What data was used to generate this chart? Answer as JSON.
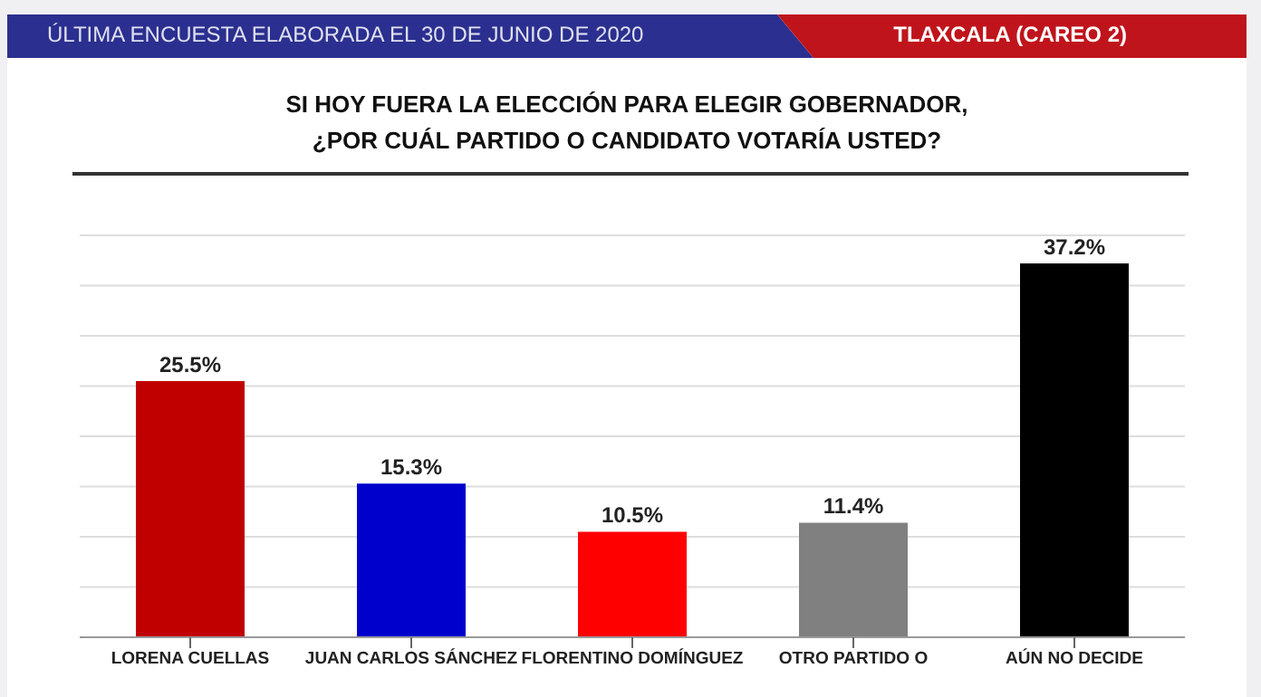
{
  "chart_data": {
    "type": "bar",
    "title": "SI HOY FUERA LA ELECCIÓN PARA ELEGIR GOBERNADOR,\n¿POR CUÁL PARTIDO O CANDIDATO VOTARÍA USTED?",
    "annotations": [
      "ÚLTIMA ENCUESTA ELABORADA EL 30 DE JUNIO DE 2020",
      "TLAXCALA (CAREO 2)"
    ],
    "categories": [
      "LORENA CUELLAS",
      "JUAN CARLOS SÁNCHEZ",
      "FLORENTINO DOMÍNGUEZ",
      "OTRO PARTIDO O",
      "AÚN NO DECIDE"
    ],
    "values": [
      25.5,
      15.3,
      10.5,
      11.4,
      37.2
    ],
    "value_labels": [
      "25.5%",
      "15.3%",
      "10.5%",
      "11.4%",
      "37.2%"
    ],
    "colors": [
      "#c00000",
      "#0000cc",
      "#ff0000",
      "#808080",
      "#000000"
    ],
    "ylim": [
      0,
      40
    ],
    "yticks": [
      {
        "value": 0,
        "label": null
      },
      {
        "value": 5,
        "label": null
      },
      {
        "value": 10,
        "label": null
      },
      {
        "value": 15,
        "label": null
      },
      {
        "value": 20,
        "label": null
      },
      {
        "value": 25,
        "label": null
      },
      {
        "value": 30,
        "label": null
      },
      {
        "value": 35,
        "label": null
      },
      {
        "value": 40,
        "label": null
      }
    ],
    "grid": "y",
    "tick_labels": "x",
    "legend": false
  }
}
